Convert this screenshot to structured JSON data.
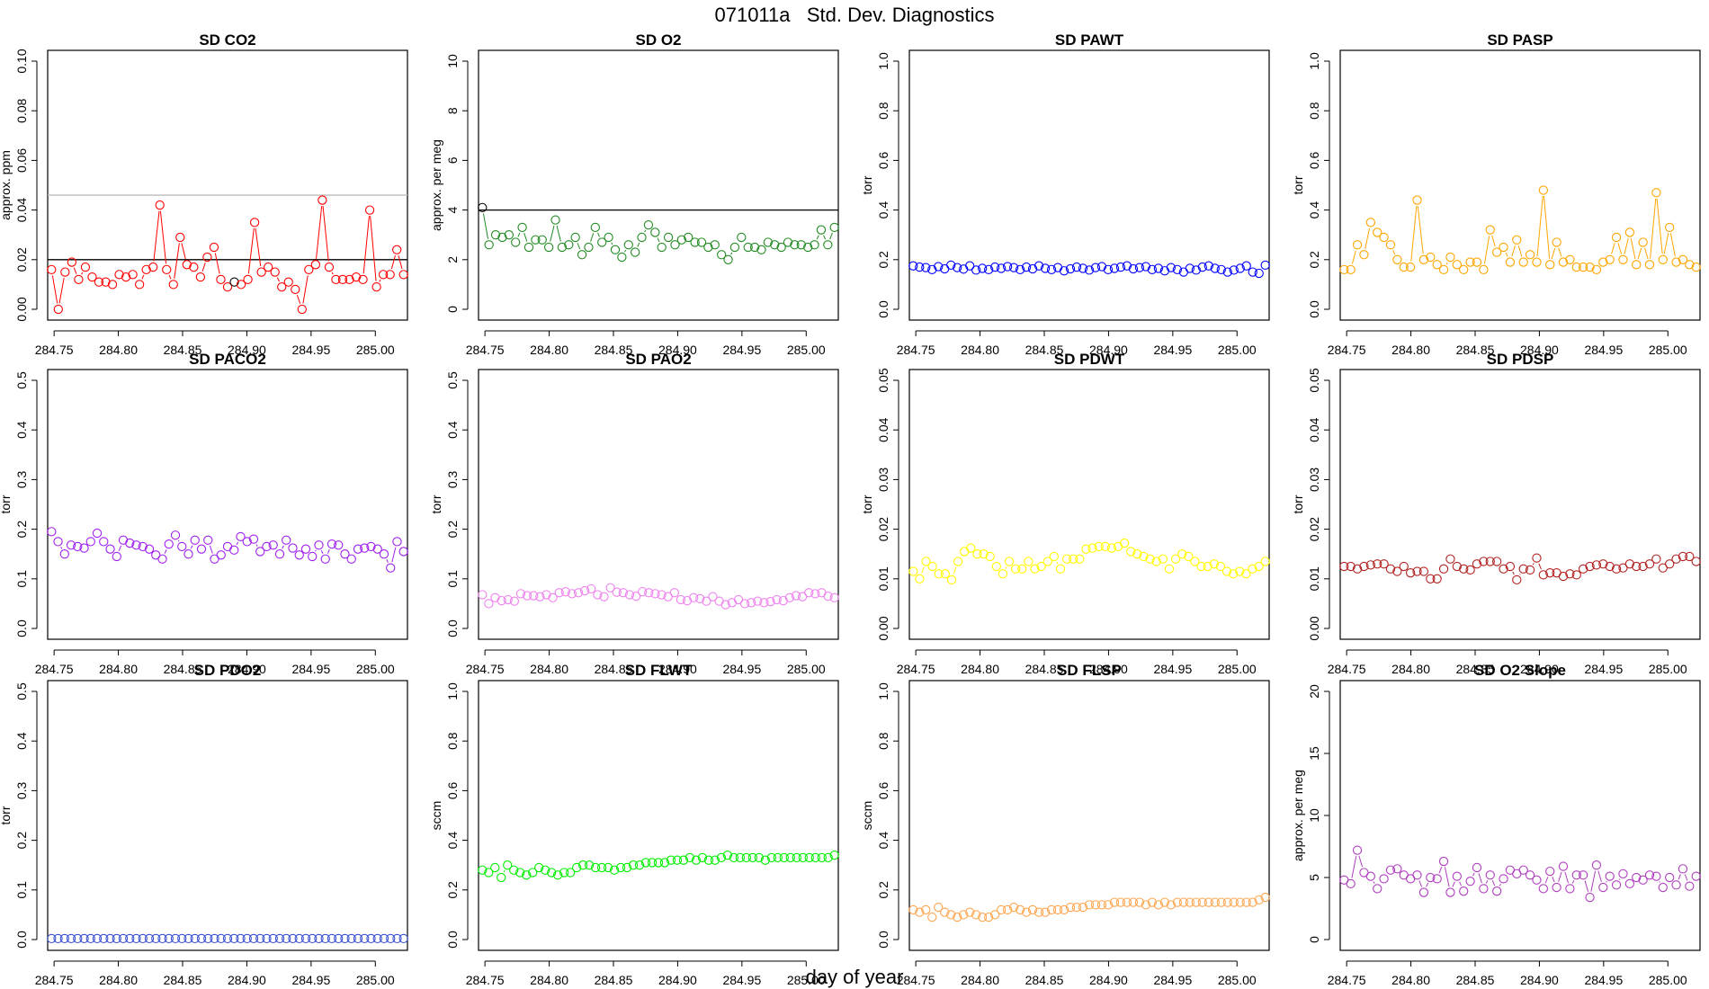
{
  "title": "071011a   Std. Dev. Diagnostics",
  "xlabel": "day of year",
  "chart_data": [
    {
      "type": "line",
      "title": "SD CO2",
      "ylabel": "approx. ppm",
      "color": "#ff0000",
      "xlim": [
        284.745,
        285.025
      ],
      "xticks": [
        "284.75",
        "284.80",
        "284.85",
        "284.90",
        "284.95",
        "285.00"
      ],
      "ylim": [
        0,
        0.1
      ],
      "yticks": [
        "0.00",
        "0.02",
        "0.04",
        "0.06",
        "0.08",
        "0.10"
      ],
      "hlines": [
        {
          "y": 0.02,
          "color": "#000000"
        },
        {
          "y": 0.046,
          "color": "#bbbbbb"
        }
      ],
      "highlight": {
        "index": 27,
        "color": "#000000"
      },
      "values": [
        0.016,
        0.0,
        0.015,
        0.019,
        0.012,
        0.017,
        0.013,
        0.011,
        0.011,
        0.01,
        0.014,
        0.013,
        0.014,
        0.01,
        0.016,
        0.017,
        0.042,
        0.016,
        0.01,
        0.029,
        0.018,
        0.017,
        0.013,
        0.021,
        0.025,
        0.012,
        0.009,
        0.011,
        0.01,
        0.012,
        0.035,
        0.015,
        0.017,
        0.015,
        0.009,
        0.011,
        0.008,
        0.0,
        0.016,
        0.018,
        0.044,
        0.017,
        0.012,
        0.012,
        0.012,
        0.013,
        0.012,
        0.04,
        0.009,
        0.014,
        0.014,
        0.024,
        0.014
      ]
    },
    {
      "type": "line",
      "title": "SD O2",
      "ylabel": "approx. per meg",
      "color": "#228b22",
      "xlim": [
        284.745,
        285.025
      ],
      "xticks": [
        "284.75",
        "284.80",
        "284.85",
        "284.90",
        "284.95",
        "285.00"
      ],
      "ylim": [
        0,
        10
      ],
      "yticks": [
        "0",
        "2",
        "4",
        "6",
        "8",
        "10"
      ],
      "hlines": [
        {
          "y": 4,
          "color": "#000000"
        }
      ],
      "highlight": {
        "index": 0,
        "color": "#000000"
      },
      "values": [
        4.1,
        2.6,
        3.0,
        2.9,
        3.0,
        2.7,
        3.3,
        2.5,
        2.8,
        2.8,
        2.5,
        3.6,
        2.5,
        2.6,
        2.9,
        2.2,
        2.5,
        3.3,
        2.7,
        2.9,
        2.4,
        2.1,
        2.6,
        2.3,
        2.9,
        3.4,
        3.1,
        2.5,
        2.9,
        2.6,
        2.8,
        2.9,
        2.7,
        2.7,
        2.5,
        2.6,
        2.2,
        2.0,
        2.5,
        2.9,
        2.5,
        2.5,
        2.4,
        2.7,
        2.6,
        2.5,
        2.7,
        2.6,
        2.6,
        2.5,
        2.6,
        3.2,
        2.6,
        3.3
      ]
    },
    {
      "type": "line",
      "title": "SD PAWT",
      "ylabel": "torr",
      "color": "#0000ff",
      "xlim": [
        284.745,
        285.025
      ],
      "xticks": [
        "284.75",
        "284.80",
        "284.85",
        "284.90",
        "284.95",
        "285.00"
      ],
      "ylim": [
        0,
        1
      ],
      "yticks": [
        "0.0",
        "0.2",
        "0.4",
        "0.6",
        "0.8",
        "1.0"
      ],
      "hlines": [],
      "values": [
        0.175,
        0.17,
        0.168,
        0.16,
        0.172,
        0.163,
        0.178,
        0.168,
        0.162,
        0.175,
        0.158,
        0.165,
        0.16,
        0.17,
        0.165,
        0.172,
        0.168,
        0.16,
        0.17,
        0.163,
        0.175,
        0.165,
        0.16,
        0.168,
        0.155,
        0.163,
        0.17,
        0.165,
        0.158,
        0.168,
        0.172,
        0.16,
        0.165,
        0.17,
        0.175,
        0.163,
        0.168,
        0.172,
        0.16,
        0.165,
        0.155,
        0.168,
        0.16,
        0.15,
        0.165,
        0.158,
        0.17,
        0.175,
        0.165,
        0.16,
        0.15,
        0.158,
        0.165,
        0.175,
        0.15,
        0.145,
        0.178
      ]
    },
    {
      "type": "line",
      "title": "SD PASP",
      "ylabel": "torr",
      "color": "#ffa500",
      "xlim": [
        284.745,
        285.025
      ],
      "xticks": [
        "284.75",
        "284.80",
        "284.85",
        "284.90",
        "284.95",
        "285.00"
      ],
      "ylim": [
        0,
        1
      ],
      "yticks": [
        "0.0",
        "0.2",
        "0.4",
        "0.6",
        "0.8",
        "1.0"
      ],
      "hlines": [],
      "values": [
        0.16,
        0.16,
        0.26,
        0.22,
        0.35,
        0.31,
        0.29,
        0.26,
        0.2,
        0.17,
        0.17,
        0.44,
        0.2,
        0.21,
        0.18,
        0.16,
        0.21,
        0.18,
        0.16,
        0.19,
        0.19,
        0.16,
        0.32,
        0.23,
        0.25,
        0.19,
        0.28,
        0.19,
        0.22,
        0.19,
        0.48,
        0.18,
        0.27,
        0.19,
        0.2,
        0.17,
        0.17,
        0.17,
        0.16,
        0.19,
        0.2,
        0.29,
        0.2,
        0.31,
        0.18,
        0.27,
        0.18,
        0.47,
        0.2,
        0.33,
        0.19,
        0.2,
        0.18,
        0.17
      ]
    },
    {
      "type": "line",
      "title": "SD PACO2",
      "ylabel": "torr",
      "color": "#a020f0",
      "xlim": [
        284.745,
        285.025
      ],
      "xticks": [
        "284.75",
        "284.80",
        "284.85",
        "284.90",
        "284.95",
        "285.00"
      ],
      "ylim": [
        0,
        0.5
      ],
      "yticks": [
        "0.0",
        "0.1",
        "0.2",
        "0.3",
        "0.4",
        "0.5"
      ],
      "hlines": [],
      "values": [
        0.195,
        0.175,
        0.15,
        0.168,
        0.165,
        0.162,
        0.175,
        0.192,
        0.175,
        0.16,
        0.145,
        0.178,
        0.172,
        0.168,
        0.165,
        0.16,
        0.148,
        0.14,
        0.17,
        0.188,
        0.165,
        0.15,
        0.178,
        0.16,
        0.178,
        0.14,
        0.148,
        0.165,
        0.158,
        0.185,
        0.175,
        0.18,
        0.155,
        0.165,
        0.168,
        0.15,
        0.178,
        0.162,
        0.148,
        0.16,
        0.145,
        0.168,
        0.14,
        0.17,
        0.168,
        0.15,
        0.14,
        0.16,
        0.162,
        0.165,
        0.16,
        0.15,
        0.122,
        0.175,
        0.155
      ]
    },
    {
      "type": "line",
      "title": "SD PAO2",
      "ylabel": "torr",
      "color": "#ee82ee",
      "xlim": [
        284.745,
        285.025
      ],
      "xticks": [
        "284.75",
        "284.80",
        "284.85",
        "284.90",
        "284.95",
        "285.00"
      ],
      "ylim": [
        0,
        0.5
      ],
      "yticks": [
        "0.0",
        "0.1",
        "0.2",
        "0.3",
        "0.4",
        "0.5"
      ],
      "hlines": [],
      "values": [
        0.068,
        0.05,
        0.062,
        0.056,
        0.058,
        0.055,
        0.07,
        0.066,
        0.066,
        0.064,
        0.068,
        0.062,
        0.072,
        0.074,
        0.07,
        0.072,
        0.076,
        0.08,
        0.068,
        0.064,
        0.082,
        0.073,
        0.072,
        0.068,
        0.065,
        0.074,
        0.072,
        0.07,
        0.068,
        0.064,
        0.072,
        0.058,
        0.056,
        0.062,
        0.06,
        0.055,
        0.064,
        0.055,
        0.048,
        0.052,
        0.058,
        0.05,
        0.052,
        0.055,
        0.052,
        0.054,
        0.058,
        0.056,
        0.062,
        0.066,
        0.064,
        0.072,
        0.07,
        0.072,
        0.065,
        0.062
      ]
    },
    {
      "type": "line",
      "title": "SD PDWT",
      "ylabel": "torr",
      "color": "#ffff00",
      "xlim": [
        284.745,
        285.025
      ],
      "xticks": [
        "284.75",
        "284.80",
        "284.85",
        "284.90",
        "284.95",
        "285.00"
      ],
      "ylim": [
        0,
        0.05
      ],
      "yticks": [
        "0.00",
        "0.01",
        "0.02",
        "0.03",
        "0.04",
        "0.05"
      ],
      "hlines": [],
      "values": [
        0.0115,
        0.01,
        0.0135,
        0.0125,
        0.011,
        0.011,
        0.0098,
        0.0135,
        0.0155,
        0.0162,
        0.015,
        0.015,
        0.0145,
        0.0125,
        0.011,
        0.0135,
        0.012,
        0.012,
        0.0135,
        0.012,
        0.0125,
        0.0135,
        0.0145,
        0.012,
        0.014,
        0.014,
        0.014,
        0.016,
        0.0162,
        0.0165,
        0.0165,
        0.0162,
        0.0165,
        0.0172,
        0.0155,
        0.015,
        0.0145,
        0.014,
        0.0135,
        0.014,
        0.012,
        0.014,
        0.015,
        0.0145,
        0.0135,
        0.0125,
        0.0125,
        0.013,
        0.0125,
        0.0115,
        0.011,
        0.0115,
        0.011,
        0.012,
        0.0125,
        0.0135
      ]
    },
    {
      "type": "line",
      "title": "SD PDSP",
      "ylabel": "torr",
      "color": "#b22222",
      "xlim": [
        284.745,
        285.025
      ],
      "xticks": [
        "284.75",
        "284.80",
        "284.85",
        "284.90",
        "284.95",
        "285.00"
      ],
      "ylim": [
        0,
        0.05
      ],
      "yticks": [
        "0.00",
        "0.01",
        "0.02",
        "0.03",
        "0.04",
        "0.05"
      ],
      "hlines": [],
      "values": [
        0.0125,
        0.0125,
        0.012,
        0.0125,
        0.0128,
        0.013,
        0.013,
        0.012,
        0.0115,
        0.0125,
        0.0112,
        0.0115,
        0.0115,
        0.01,
        0.01,
        0.012,
        0.014,
        0.0125,
        0.012,
        0.0118,
        0.013,
        0.0135,
        0.0135,
        0.0135,
        0.012,
        0.0125,
        0.0098,
        0.012,
        0.0118,
        0.0142,
        0.0108,
        0.0112,
        0.0112,
        0.0105,
        0.011,
        0.0108,
        0.012,
        0.0125,
        0.0128,
        0.013,
        0.0125,
        0.012,
        0.0122,
        0.013,
        0.0125,
        0.0125,
        0.013,
        0.014,
        0.0122,
        0.013,
        0.014,
        0.0145,
        0.0145,
        0.0135
      ]
    },
    {
      "type": "line",
      "title": "SD PDO2",
      "ylabel": "torr",
      "color": "#3a4fcf",
      "xlim": [
        284.745,
        285.025
      ],
      "xticks": [
        "284.75",
        "284.80",
        "284.85",
        "284.90",
        "284.95",
        "285.00"
      ],
      "ylim": [
        0,
        0.5
      ],
      "yticks": [
        "0.0",
        "0.1",
        "0.2",
        "0.3",
        "0.4",
        "0.5"
      ],
      "hlines": [],
      "values": [
        0.002,
        0.002,
        0.002,
        0.002,
        0.002,
        0.002,
        0.002,
        0.002,
        0.002,
        0.002,
        0.002,
        0.002,
        0.002,
        0.002,
        0.002,
        0.002,
        0.002,
        0.002,
        0.002,
        0.002,
        0.002,
        0.002,
        0.002,
        0.002,
        0.002,
        0.002,
        0.002,
        0.002,
        0.002,
        0.002,
        0.002,
        0.002,
        0.002,
        0.002,
        0.002,
        0.002,
        0.002,
        0.002,
        0.002,
        0.002,
        0.002,
        0.002,
        0.002,
        0.002,
        0.002,
        0.002,
        0.002,
        0.002,
        0.002,
        0.002,
        0.002,
        0.002,
        0.002,
        0.002,
        0.002
      ]
    },
    {
      "type": "line",
      "title": "SD FLWT",
      "ylabel": "sccm",
      "color": "#00ee00",
      "xlim": [
        284.745,
        285.025
      ],
      "xticks": [
        "284.75",
        "284.80",
        "284.85",
        "284.90",
        "284.95",
        "285.00"
      ],
      "ylim": [
        0,
        1
      ],
      "yticks": [
        "0.0",
        "0.2",
        "0.4",
        "0.6",
        "0.8",
        "1.0"
      ],
      "hlines": [],
      "values": [
        0.28,
        0.27,
        0.29,
        0.25,
        0.3,
        0.28,
        0.27,
        0.26,
        0.27,
        0.29,
        0.28,
        0.27,
        0.26,
        0.27,
        0.27,
        0.29,
        0.3,
        0.3,
        0.29,
        0.29,
        0.29,
        0.28,
        0.29,
        0.29,
        0.3,
        0.3,
        0.31,
        0.31,
        0.31,
        0.31,
        0.32,
        0.32,
        0.32,
        0.33,
        0.32,
        0.33,
        0.32,
        0.32,
        0.33,
        0.34,
        0.33,
        0.33,
        0.33,
        0.33,
        0.33,
        0.32,
        0.33,
        0.33,
        0.33,
        0.33,
        0.33,
        0.33,
        0.33,
        0.33,
        0.33,
        0.33,
        0.34
      ]
    },
    {
      "type": "line",
      "title": "SD FLSP",
      "ylabel": "sccm",
      "color": "#ffa54f",
      "xlim": [
        284.745,
        285.025
      ],
      "xticks": [
        "284.75",
        "284.80",
        "284.85",
        "284.90",
        "284.95",
        "285.00"
      ],
      "ylim": [
        0,
        1
      ],
      "yticks": [
        "0.0",
        "0.2",
        "0.4",
        "0.6",
        "0.8",
        "1.0"
      ],
      "hlines": [],
      "values": [
        0.12,
        0.11,
        0.12,
        0.09,
        0.13,
        0.11,
        0.1,
        0.09,
        0.1,
        0.11,
        0.1,
        0.09,
        0.09,
        0.1,
        0.12,
        0.12,
        0.13,
        0.12,
        0.11,
        0.12,
        0.11,
        0.11,
        0.12,
        0.12,
        0.12,
        0.13,
        0.13,
        0.13,
        0.14,
        0.14,
        0.14,
        0.14,
        0.15,
        0.15,
        0.15,
        0.15,
        0.15,
        0.14,
        0.15,
        0.14,
        0.15,
        0.14,
        0.15,
        0.15,
        0.15,
        0.15,
        0.15,
        0.15,
        0.15,
        0.15,
        0.15,
        0.15,
        0.15,
        0.15,
        0.15,
        0.16,
        0.17
      ]
    },
    {
      "type": "line",
      "title": "SD O2 Slope",
      "ylabel": "approx. per meg",
      "color": "#b03cc0",
      "xlim": [
        284.745,
        285.025
      ],
      "xticks": [
        "284.75",
        "284.80",
        "284.85",
        "284.90",
        "284.95",
        "285.00"
      ],
      "ylim": [
        0,
        20
      ],
      "yticks": [
        "0",
        "5",
        "10",
        "15",
        "20"
      ],
      "hlines": [],
      "values": [
        4.8,
        4.5,
        7.2,
        5.4,
        5.1,
        4.1,
        4.9,
        5.6,
        5.7,
        5.2,
        4.9,
        5.2,
        3.8,
        5.0,
        4.9,
        6.3,
        3.8,
        5.1,
        3.9,
        4.7,
        5.8,
        4.1,
        5.2,
        3.9,
        4.9,
        5.6,
        5.3,
        5.6,
        5.2,
        4.8,
        4.1,
        5.5,
        4.2,
        5.9,
        4.1,
        5.2,
        5.2,
        3.4,
        6.0,
        4.2,
        5.1,
        4.4,
        5.3,
        4.5,
        5.0,
        4.8,
        5.2,
        5.1,
        4.2,
        5.0,
        4.4,
        5.7,
        4.3,
        5.1
      ]
    }
  ]
}
